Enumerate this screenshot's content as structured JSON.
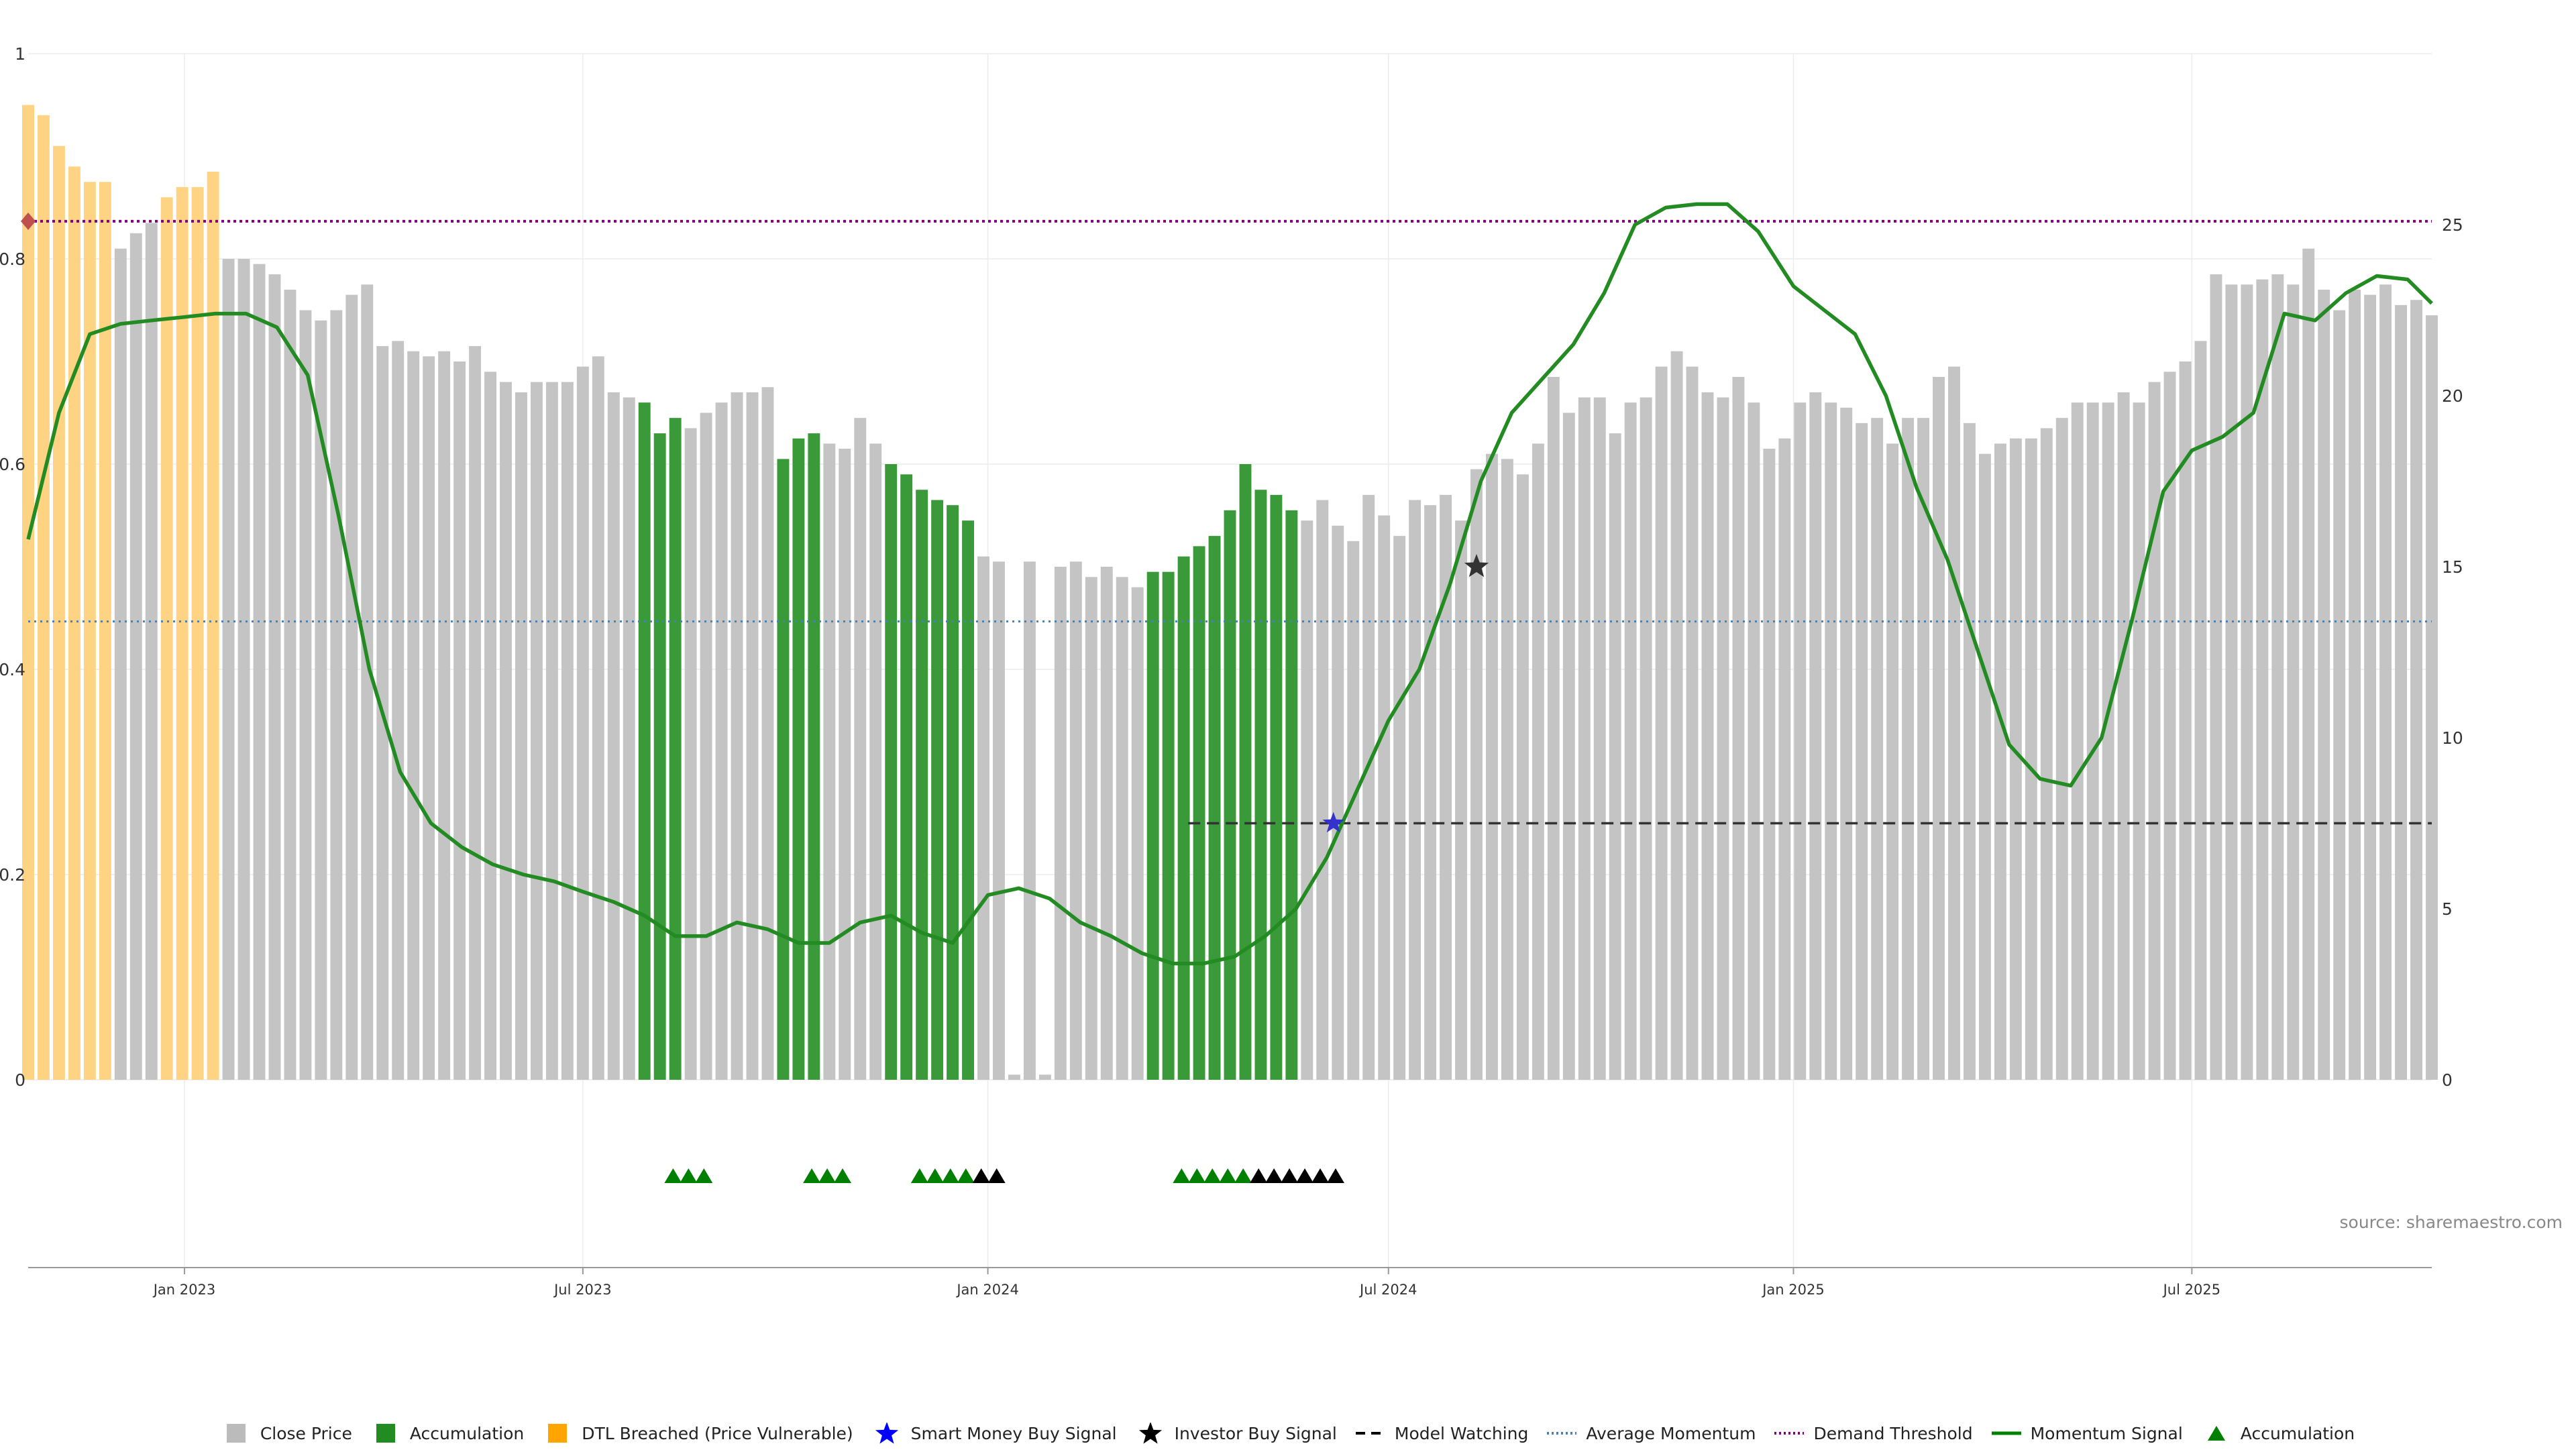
{
  "source_text": "source: sharemaestro.com",
  "chart_data": {
    "type": "bar",
    "yaxis_left": {
      "min": 0,
      "max": 1,
      "ticks": [
        "0",
        "0.2",
        "0.4",
        "0.6",
        "0.8",
        "1"
      ]
    },
    "yaxis_right": {
      "min": 0,
      "max": 30,
      "ticks": [
        "0",
        "5",
        "10",
        "15",
        "20",
        "25"
      ]
    },
    "x_start": "2022-10-22",
    "x_end": "2025-10-18",
    "x_ticks": [
      {
        "date": "2023-01-01",
        "label": "Jan 2023"
      },
      {
        "date": "2023-07-01",
        "label": "Jul 2023"
      },
      {
        "date": "2024-01-01",
        "label": "Jan 2024"
      },
      {
        "date": "2024-07-01",
        "label": "Jul 2024"
      },
      {
        "date": "2025-01-01",
        "label": "Jan 2025"
      },
      {
        "date": "2025-07-01",
        "label": "Jul 2025"
      }
    ],
    "grid": true,
    "bars": {
      "start_date": "2022-10-22",
      "interval_days": 7,
      "values": [
        0.95,
        0.94,
        0.91,
        0.89,
        0.875,
        0.875,
        0.81,
        0.825,
        0.835,
        0.86,
        0.87,
        0.87,
        0.885,
        0.8,
        0.8,
        0.795,
        0.785,
        0.77,
        0.75,
        0.74,
        0.75,
        0.765,
        0.775,
        0.715,
        0.72,
        0.71,
        0.705,
        0.71,
        0.7,
        0.715,
        0.69,
        0.68,
        0.67,
        0.68,
        0.68,
        0.68,
        0.695,
        0.705,
        0.67,
        0.665,
        0.66,
        0.63,
        0.645,
        0.635,
        0.65,
        0.66,
        0.67,
        0.67,
        0.675,
        0.605,
        0.625,
        0.63,
        0.62,
        0.615,
        0.645,
        0.62,
        0.6,
        0.59,
        0.575,
        0.565,
        0.56,
        0.545,
        0.51,
        0.505,
        0.005,
        0.505,
        0.005,
        0.5,
        0.505,
        0.49,
        0.5,
        0.49,
        0.48,
        0.495,
        0.495,
        0.51,
        0.52,
        0.53,
        0.555,
        0.6,
        0.575,
        0.57,
        0.555,
        0.545,
        0.565,
        0.54,
        0.525,
        0.57,
        0.55,
        0.53,
        0.565,
        0.56,
        0.57,
        0.545,
        0.595,
        0.61,
        0.605,
        0.59,
        0.62,
        0.685,
        0.65,
        0.665,
        0.665,
        0.63,
        0.66,
        0.665,
        0.695,
        0.71,
        0.695,
        0.67,
        0.665,
        0.685,
        0.66,
        0.615,
        0.625,
        0.66,
        0.67,
        0.66,
        0.655,
        0.64,
        0.645,
        0.62,
        0.645,
        0.645,
        0.685,
        0.695,
        0.64,
        0.61,
        0.62,
        0.625,
        0.625,
        0.635,
        0.645,
        0.66,
        0.66,
        0.66,
        0.67,
        0.66,
        0.68,
        0.69,
        0.7,
        0.72,
        0.785,
        0.775,
        0.775,
        0.78,
        0.785,
        0.775,
        0.81,
        0.77,
        0.75,
        0.77,
        0.765,
        0.775,
        0.755,
        0.76,
        0.745
      ],
      "accumulation_ranges": [
        [
          40,
          42
        ],
        [
          49,
          51
        ],
        [
          56,
          61
        ],
        [
          73,
          82
        ]
      ],
      "dtl_breached_ranges": [
        [
          0,
          5
        ],
        [
          9,
          12
        ]
      ]
    },
    "series": [
      {
        "name": "Momentum Signal",
        "axis": "right",
        "points": [
          [
            "2022-10-22",
            15.8
          ],
          [
            "2022-11-05",
            19.5
          ],
          [
            "2022-11-19",
            21.8
          ],
          [
            "2022-12-03",
            22.1
          ],
          [
            "2022-12-17",
            22.2
          ],
          [
            "2023-01-01",
            22.3
          ],
          [
            "2023-01-15",
            22.4
          ],
          [
            "2023-01-29",
            22.4
          ],
          [
            "2023-02-12",
            22.0
          ],
          [
            "2023-02-26",
            20.6
          ],
          [
            "2023-03-12",
            16.5
          ],
          [
            "2023-03-26",
            12.0
          ],
          [
            "2023-04-09",
            9.0
          ],
          [
            "2023-04-23",
            7.5
          ],
          [
            "2023-05-07",
            6.8
          ],
          [
            "2023-05-21",
            6.3
          ],
          [
            "2023-06-04",
            6.0
          ],
          [
            "2023-06-18",
            5.8
          ],
          [
            "2023-07-01",
            5.5
          ],
          [
            "2023-07-15",
            5.2
          ],
          [
            "2023-07-29",
            4.8
          ],
          [
            "2023-08-12",
            4.2
          ],
          [
            "2023-08-26",
            4.2
          ],
          [
            "2023-09-09",
            4.6
          ],
          [
            "2023-09-23",
            4.4
          ],
          [
            "2023-10-07",
            4.0
          ],
          [
            "2023-10-21",
            4.0
          ],
          [
            "2023-11-04",
            4.6
          ],
          [
            "2023-11-18",
            4.8
          ],
          [
            "2023-12-02",
            4.3
          ],
          [
            "2023-12-16",
            4.0
          ],
          [
            "2024-01-01",
            5.4
          ],
          [
            "2024-01-15",
            5.6
          ],
          [
            "2024-01-29",
            5.3
          ],
          [
            "2024-02-12",
            4.6
          ],
          [
            "2024-02-26",
            4.2
          ],
          [
            "2024-03-11",
            3.7
          ],
          [
            "2024-03-25",
            3.4
          ],
          [
            "2024-04-08",
            3.4
          ],
          [
            "2024-04-22",
            3.6
          ],
          [
            "2024-05-06",
            4.2
          ],
          [
            "2024-05-20",
            5.0
          ],
          [
            "2024-06-03",
            6.5
          ],
          [
            "2024-06-17",
            8.5
          ],
          [
            "2024-07-01",
            10.5
          ],
          [
            "2024-07-15",
            12.0
          ],
          [
            "2024-07-29",
            14.5
          ],
          [
            "2024-08-12",
            17.5
          ],
          [
            "2024-08-26",
            19.5
          ],
          [
            "2024-09-09",
            20.5
          ],
          [
            "2024-09-23",
            21.5
          ],
          [
            "2024-10-07",
            23.0
          ],
          [
            "2024-10-21",
            25.0
          ],
          [
            "2024-11-04",
            25.5
          ],
          [
            "2024-11-18",
            25.6
          ],
          [
            "2024-12-02",
            25.6
          ],
          [
            "2024-12-16",
            24.8
          ],
          [
            "2025-01-01",
            23.2
          ],
          [
            "2025-01-15",
            22.5
          ],
          [
            "2025-01-29",
            21.8
          ],
          [
            "2025-02-12",
            20.0
          ],
          [
            "2025-02-26",
            17.3
          ],
          [
            "2025-03-12",
            15.2
          ],
          [
            "2025-03-26",
            12.5
          ],
          [
            "2025-04-09",
            9.8
          ],
          [
            "2025-04-23",
            8.8
          ],
          [
            "2025-05-07",
            8.6
          ],
          [
            "2025-05-21",
            10.0
          ],
          [
            "2025-06-04",
            13.5
          ],
          [
            "2025-06-18",
            17.2
          ],
          [
            "2025-07-01",
            18.4
          ],
          [
            "2025-07-15",
            18.8
          ],
          [
            "2025-07-29",
            19.5
          ],
          [
            "2025-08-12",
            22.4
          ],
          [
            "2025-08-26",
            22.2
          ],
          [
            "2025-09-09",
            23.0
          ],
          [
            "2025-09-23",
            23.5
          ],
          [
            "2025-10-07",
            23.4
          ],
          [
            "2025-10-18",
            22.7
          ]
        ]
      }
    ],
    "reference_lines": [
      {
        "name": "Demand Threshold",
        "axis": "right",
        "value": 25.1
      },
      {
        "name": "Average Momentum",
        "axis": "right",
        "value": 13.4
      },
      {
        "name": "Model Watching",
        "axis": "right",
        "value": 7.5,
        "x_start": "2024-04-01"
      }
    ],
    "signals": [
      {
        "type": "Smart Money Buy Signal",
        "date": "2024-06-06",
        "value": 7.5
      },
      {
        "type": "Investor Buy Signal",
        "date": "2024-08-10",
        "value": 15.0
      },
      {
        "type": "DTL marker",
        "date": "2022-10-22",
        "value": 25.1
      }
    ],
    "markers": {
      "accumulation": [
        "2023-08-11",
        "2023-08-18",
        "2023-08-25",
        "2023-10-13",
        "2023-10-20",
        "2023-10-27",
        "2023-12-01",
        "2023-12-08",
        "2023-12-15",
        "2023-12-22",
        "2024-03-29",
        "2024-04-05",
        "2024-04-12",
        "2024-04-19",
        "2024-04-26"
      ],
      "investor": [
        "2023-12-29",
        "2024-01-05",
        "2024-05-03",
        "2024-05-10",
        "2024-05-17",
        "2024-05-24",
        "2024-05-31",
        "2024-06-07"
      ]
    },
    "legend": [
      {
        "label": "Close Price",
        "symbol": "square",
        "color": "#bbbbbb"
      },
      {
        "label": "Accumulation",
        "symbol": "square",
        "color": "#228b22"
      },
      {
        "label": "DTL Breached (Price Vulnerable)",
        "symbol": "square",
        "color": "#ffa500"
      },
      {
        "label": "Smart Money Buy Signal",
        "symbol": "star",
        "color": "#0000ff"
      },
      {
        "label": "Investor Buy Signal",
        "symbol": "star",
        "color": "#000000"
      },
      {
        "label": "Model Watching",
        "symbol": "dash",
        "color": "#000000"
      },
      {
        "label": "Average Momentum",
        "symbol": "dot",
        "color": "#4682b4"
      },
      {
        "label": "Demand Threshold",
        "symbol": "dot",
        "color": "#800080"
      },
      {
        "label": "Momentum Signal",
        "symbol": "line",
        "color": "#008000"
      },
      {
        "label": "Accumulation",
        "symbol": "triangle",
        "color": "#008000"
      }
    ],
    "colors": {
      "close": "#c4c4c4",
      "accumulation": "#3a9a3a",
      "dtl": "#ffd384",
      "momentum": "#228b22",
      "demand": "#800080",
      "average": "#4682b4",
      "watching": "#333333",
      "smart_star": "#3333cc",
      "investor_star": "#333333",
      "dtl_marker": "#c0504d"
    }
  }
}
